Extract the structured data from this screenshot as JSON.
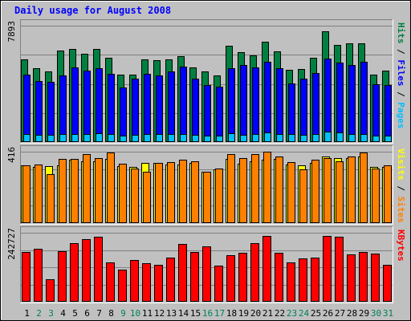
{
  "chart_data": {
    "type": "bar",
    "title": "Daily usage for August 2008",
    "categories": [
      "1",
      "2",
      "3",
      "4",
      "5",
      "6",
      "7",
      "8",
      "9",
      "10",
      "11",
      "12",
      "13",
      "14",
      "15",
      "16",
      "17",
      "18",
      "19",
      "20",
      "21",
      "22",
      "23",
      "24",
      "25",
      "26",
      "27",
      "28",
      "29",
      "30",
      "31"
    ],
    "weekend_days": [
      "2",
      "3",
      "9",
      "10",
      "16",
      "17",
      "23",
      "24",
      "30",
      "31"
    ],
    "panels": [
      {
        "name": "hits-files-pages",
        "max_label": "7893",
        "ylim": [
          0,
          7893
        ],
        "legend": [
          {
            "text": "Pages",
            "color": "#00c0ff"
          },
          {
            "text": " / ",
            "color": "#000000"
          },
          {
            "text": "Files",
            "color": "#0000ff"
          },
          {
            "text": " / ",
            "color": "#000000"
          },
          {
            "text": "Hits",
            "color": "#008040"
          }
        ],
        "series": [
          {
            "name": "Hits",
            "color": "#008040",
            "values": [
              5620,
              5030,
              4790,
              6200,
              6290,
              5990,
              6300,
              5700,
              4570,
              4570,
              5580,
              5550,
              5590,
              5800,
              5080,
              4810,
              4510,
              6520,
              6100,
              5900,
              6810,
              6160,
              4900,
              4960,
              5690,
              7500,
              6570,
              6700,
              6700,
              4590,
              4850
            ]
          },
          {
            "name": "Files",
            "color": "#0000ff",
            "values": [
              4560,
              4110,
              4070,
              4500,
              5040,
              4840,
              5020,
              4600,
              3690,
              4300,
              4650,
              4500,
              4800,
              5100,
              4320,
              3870,
              3780,
              5000,
              5200,
              5040,
              5420,
              5000,
              3950,
              4290,
              4700,
              5680,
              5400,
              5200,
              5470,
              3900,
              3870
            ]
          },
          {
            "name": "Pages",
            "color": "#00c0ff",
            "values": [
              520,
              480,
              480,
              520,
              560,
              520,
              600,
              520,
              440,
              500,
              520,
              560,
              560,
              560,
              500,
              450,
              420,
              600,
              480,
              560,
              680,
              560,
              520,
              480,
              560,
              720,
              640,
              560,
              520,
              460,
              420
            ]
          }
        ]
      },
      {
        "name": "visits-sites",
        "max_label": "416",
        "ylim": [
          0,
          416
        ],
        "legend": [
          {
            "text": "Sites",
            "color": "#ff8000"
          },
          {
            "text": " / ",
            "color": "#000000"
          },
          {
            "text": "Visits",
            "color": "#ffff00"
          }
        ],
        "series": [
          {
            "name": "Visits",
            "color": "#ffff00",
            "values": [
              335,
              325,
              330,
              338,
              370,
              360,
              360,
              372,
              330,
              325,
              350,
              352,
              342,
              340,
              350,
              300,
              312,
              372,
              345,
              360,
              370,
              372,
              340,
              335,
              350,
              390,
              380,
              380,
              390,
              325,
              325
            ]
          },
          {
            "name": "Sites",
            "color": "#ff8000",
            "values": [
              335,
              340,
              287,
              375,
              372,
              400,
              378,
              412,
              345,
              318,
              298,
              350,
              356,
              368,
              360,
              298,
              318,
              400,
              380,
              400,
              418,
              390,
              355,
              315,
              368,
              380,
              360,
              390,
              412,
              320,
              335
            ]
          }
        ]
      },
      {
        "name": "kbytes",
        "max_label": "242727",
        "ylim": [
          0,
          242727
        ],
        "legend": [
          {
            "text": "KBytes",
            "color": "#ff0000"
          }
        ],
        "series": [
          {
            "name": "KBytes",
            "color": "#ff0000",
            "values": [
              174000,
              187000,
              80000,
              178000,
              207000,
              219000,
              228000,
              137000,
              113000,
              148000,
              135000,
              131000,
              154000,
              202000,
              176000,
              196000,
              128000,
              163000,
              173000,
              206000,
              232000,
              172000,
              137000,
              151000,
              154000,
              232000,
              228000,
              167000,
              176000,
              169000,
              129000
            ]
          }
        ]
      }
    ],
    "grid": true,
    "legend_position": "right-vertical"
  }
}
